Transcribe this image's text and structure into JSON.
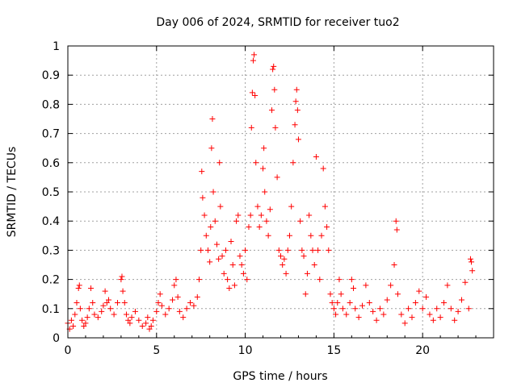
{
  "chart_data": {
    "type": "scatter",
    "title": "Day 006 of 2024, SRMTID for receiver tuo2",
    "xlabel": "GPS time / hours",
    "ylabel": "SRMTID / TECUs",
    "xlim": [
      0,
      24
    ],
    "ylim": [
      0,
      1
    ],
    "xticks": [
      0,
      5,
      10,
      15,
      20
    ],
    "xtick_labels": [
      "0",
      "5",
      "10",
      "15",
      "20"
    ],
    "yticks": [
      0,
      0.1,
      0.2,
      0.3,
      0.4,
      0.5,
      0.6,
      0.7,
      0.8,
      0.9,
      1
    ],
    "ytick_labels": [
      "0",
      "0.1",
      "0.2",
      "0.3",
      "0.4",
      "0.5",
      "0.6",
      "0.7",
      "0.8",
      "0.9",
      "1"
    ],
    "grid": true,
    "marker": "+",
    "color": "#ff0000",
    "series": [
      {
        "name": "SRMTID",
        "points": [
          [
            0.0,
            0.05
          ],
          [
            0.1,
            0.03
          ],
          [
            0.2,
            0.06
          ],
          [
            0.3,
            0.04
          ],
          [
            0.4,
            0.08
          ],
          [
            0.5,
            0.12
          ],
          [
            0.6,
            0.17
          ],
          [
            0.65,
            0.18
          ],
          [
            0.7,
            0.1
          ],
          [
            0.8,
            0.06
          ],
          [
            0.9,
            0.04
          ],
          [
            1.0,
            0.05
          ],
          [
            1.1,
            0.07
          ],
          [
            1.2,
            0.1
          ],
          [
            1.3,
            0.17
          ],
          [
            1.4,
            0.12
          ],
          [
            1.5,
            0.08
          ],
          [
            1.7,
            0.07
          ],
          [
            1.9,
            0.09
          ],
          [
            2.0,
            0.11
          ],
          [
            2.1,
            0.16
          ],
          [
            2.2,
            0.12
          ],
          [
            2.3,
            0.13
          ],
          [
            2.4,
            0.1
          ],
          [
            2.6,
            0.08
          ],
          [
            2.8,
            0.12
          ],
          [
            3.0,
            0.2
          ],
          [
            3.05,
            0.21
          ],
          [
            3.1,
            0.16
          ],
          [
            3.2,
            0.12
          ],
          [
            3.3,
            0.08
          ],
          [
            3.4,
            0.06
          ],
          [
            3.5,
            0.05
          ],
          [
            3.6,
            0.07
          ],
          [
            3.8,
            0.09
          ],
          [
            4.0,
            0.06
          ],
          [
            4.2,
            0.04
          ],
          [
            4.4,
            0.05
          ],
          [
            4.5,
            0.07
          ],
          [
            4.6,
            0.03
          ],
          [
            4.7,
            0.04
          ],
          [
            4.8,
            0.06
          ],
          [
            5.0,
            0.09
          ],
          [
            5.1,
            0.12
          ],
          [
            5.2,
            0.15
          ],
          [
            5.3,
            0.11
          ],
          [
            5.5,
            0.08
          ],
          [
            5.7,
            0.1
          ],
          [
            5.9,
            0.13
          ],
          [
            6.0,
            0.18
          ],
          [
            6.1,
            0.2
          ],
          [
            6.2,
            0.14
          ],
          [
            6.3,
            0.09
          ],
          [
            6.5,
            0.07
          ],
          [
            6.7,
            0.1
          ],
          [
            6.9,
            0.12
          ],
          [
            7.1,
            0.11
          ],
          [
            7.3,
            0.14
          ],
          [
            7.4,
            0.2
          ],
          [
            7.5,
            0.3
          ],
          [
            7.55,
            0.57
          ],
          [
            7.6,
            0.48
          ],
          [
            7.7,
            0.42
          ],
          [
            7.8,
            0.35
          ],
          [
            7.9,
            0.3
          ],
          [
            8.0,
            0.26
          ],
          [
            8.05,
            0.38
          ],
          [
            8.1,
            0.65
          ],
          [
            8.15,
            0.75
          ],
          [
            8.2,
            0.5
          ],
          [
            8.3,
            0.4
          ],
          [
            8.4,
            0.32
          ],
          [
            8.5,
            0.27
          ],
          [
            8.55,
            0.6
          ],
          [
            8.6,
            0.45
          ],
          [
            8.7,
            0.28
          ],
          [
            8.8,
            0.22
          ],
          [
            8.9,
            0.3
          ],
          [
            9.0,
            0.2
          ],
          [
            9.1,
            0.17
          ],
          [
            9.2,
            0.33
          ],
          [
            9.3,
            0.25
          ],
          [
            9.4,
            0.18
          ],
          [
            9.5,
            0.4
          ],
          [
            9.6,
            0.42
          ],
          [
            9.7,
            0.28
          ],
          [
            9.8,
            0.25
          ],
          [
            9.9,
            0.22
          ],
          [
            10.0,
            0.3
          ],
          [
            10.1,
            0.2
          ],
          [
            10.2,
            0.38
          ],
          [
            10.3,
            0.42
          ],
          [
            10.35,
            0.72
          ],
          [
            10.4,
            0.84
          ],
          [
            10.45,
            0.95
          ],
          [
            10.5,
            0.97
          ],
          [
            10.55,
            0.83
          ],
          [
            10.6,
            0.6
          ],
          [
            10.7,
            0.45
          ],
          [
            10.8,
            0.38
          ],
          [
            10.9,
            0.42
          ],
          [
            11.0,
            0.58
          ],
          [
            11.05,
            0.65
          ],
          [
            11.1,
            0.5
          ],
          [
            11.2,
            0.4
          ],
          [
            11.3,
            0.35
          ],
          [
            11.4,
            0.44
          ],
          [
            11.5,
            0.78
          ],
          [
            11.55,
            0.92
          ],
          [
            11.6,
            0.93
          ],
          [
            11.65,
            0.85
          ],
          [
            11.7,
            0.72
          ],
          [
            11.8,
            0.55
          ],
          [
            11.9,
            0.3
          ],
          [
            12.0,
            0.28
          ],
          [
            12.1,
            0.25
          ],
          [
            12.2,
            0.27
          ],
          [
            12.3,
            0.22
          ],
          [
            12.4,
            0.3
          ],
          [
            12.5,
            0.35
          ],
          [
            12.6,
            0.45
          ],
          [
            12.7,
            0.6
          ],
          [
            12.8,
            0.73
          ],
          [
            12.85,
            0.81
          ],
          [
            12.9,
            0.85
          ],
          [
            12.95,
            0.78
          ],
          [
            13.0,
            0.68
          ],
          [
            13.1,
            0.4
          ],
          [
            13.2,
            0.3
          ],
          [
            13.3,
            0.28
          ],
          [
            13.4,
            0.15
          ],
          [
            13.5,
            0.22
          ],
          [
            13.6,
            0.42
          ],
          [
            13.7,
            0.35
          ],
          [
            13.8,
            0.3
          ],
          [
            13.9,
            0.25
          ],
          [
            14.0,
            0.62
          ],
          [
            14.1,
            0.3
          ],
          [
            14.2,
            0.2
          ],
          [
            14.3,
            0.35
          ],
          [
            14.4,
            0.58
          ],
          [
            14.5,
            0.45
          ],
          [
            14.6,
            0.38
          ],
          [
            14.7,
            0.3
          ],
          [
            14.8,
            0.15
          ],
          [
            14.9,
            0.12
          ],
          [
            15.0,
            0.1
          ],
          [
            15.1,
            0.08
          ],
          [
            15.2,
            0.12
          ],
          [
            15.3,
            0.2
          ],
          [
            15.4,
            0.15
          ],
          [
            15.5,
            0.1
          ],
          [
            15.7,
            0.08
          ],
          [
            15.9,
            0.12
          ],
          [
            16.0,
            0.2
          ],
          [
            16.1,
            0.17
          ],
          [
            16.2,
            0.1
          ],
          [
            16.4,
            0.07
          ],
          [
            16.6,
            0.11
          ],
          [
            16.8,
            0.18
          ],
          [
            17.0,
            0.12
          ],
          [
            17.2,
            0.09
          ],
          [
            17.4,
            0.06
          ],
          [
            17.6,
            0.1
          ],
          [
            17.8,
            0.08
          ],
          [
            18.0,
            0.13
          ],
          [
            18.2,
            0.18
          ],
          [
            18.4,
            0.25
          ],
          [
            18.5,
            0.4
          ],
          [
            18.55,
            0.37
          ],
          [
            18.6,
            0.15
          ],
          [
            18.8,
            0.08
          ],
          [
            19.0,
            0.05
          ],
          [
            19.2,
            0.1
          ],
          [
            19.4,
            0.07
          ],
          [
            19.6,
            0.12
          ],
          [
            19.8,
            0.16
          ],
          [
            20.0,
            0.1
          ],
          [
            20.2,
            0.14
          ],
          [
            20.4,
            0.08
          ],
          [
            20.6,
            0.06
          ],
          [
            20.8,
            0.1
          ],
          [
            21.0,
            0.07
          ],
          [
            21.2,
            0.12
          ],
          [
            21.4,
            0.18
          ],
          [
            21.6,
            0.1
          ],
          [
            21.8,
            0.06
          ],
          [
            22.0,
            0.09
          ],
          [
            22.2,
            0.13
          ],
          [
            22.4,
            0.19
          ],
          [
            22.6,
            0.1
          ],
          [
            22.7,
            0.27
          ],
          [
            22.75,
            0.26
          ],
          [
            22.8,
            0.23
          ]
        ]
      }
    ]
  }
}
